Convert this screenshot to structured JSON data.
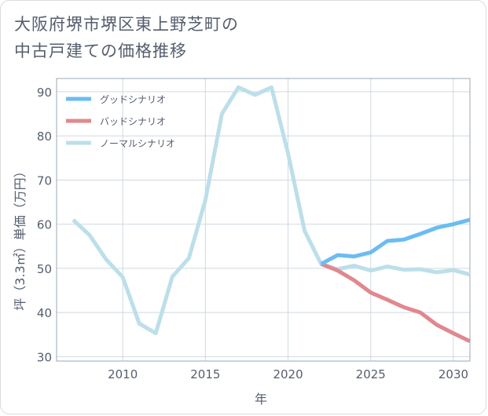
{
  "title_lines": [
    "大阪府堺市堺区東上野芝町の",
    "中古戸建ての価格推移"
  ],
  "chart_data": {
    "type": "line",
    "xlabel": "年",
    "ylabel": "坪（3.3㎡）単価（万円）",
    "xlim": [
      2006,
      2031
    ],
    "ylim": [
      29,
      93
    ],
    "xticks": [
      2010,
      2015,
      2020,
      2025,
      2030
    ],
    "yticks": [
      30,
      40,
      50,
      60,
      70,
      80,
      90
    ],
    "grid": true,
    "legend_position": "top-left",
    "series": [
      {
        "name": "グッドシナリオ",
        "color": "#6bbcf2",
        "x": [
          2022,
          2023,
          2024,
          2025,
          2026,
          2027,
          2028,
          2029,
          2030,
          2031
        ],
        "y": [
          51,
          53,
          52.7,
          53.6,
          56.2,
          56.5,
          57.8,
          59.2,
          60,
          61
        ]
      },
      {
        "name": "バッドシナリオ",
        "color": "#e0888e",
        "x": [
          2022,
          2023,
          2024,
          2025,
          2026,
          2027,
          2028,
          2029,
          2030,
          2031
        ],
        "y": [
          51,
          49.5,
          47.3,
          44.5,
          42.9,
          41.2,
          40,
          37.2,
          35.3,
          33.5
        ]
      },
      {
        "name": "ノーマルシナリオ",
        "color": "#bcdfea",
        "x": [
          2007,
          2008,
          2009,
          2010,
          2011,
          2012,
          2013,
          2014,
          2015,
          2016,
          2017,
          2018,
          2019,
          2020,
          2021,
          2022,
          2023,
          2024,
          2025,
          2026,
          2027,
          2028,
          2029,
          2030,
          2031
        ],
        "y": [
          61,
          57.5,
          52,
          48,
          37.5,
          35.3,
          48.1,
          52.3,
          65.5,
          85,
          91,
          89.3,
          91,
          76,
          58.5,
          51,
          49.8,
          50.6,
          49.5,
          50.4,
          49.7,
          49.8,
          49.1,
          49.6,
          48.6
        ]
      }
    ]
  }
}
